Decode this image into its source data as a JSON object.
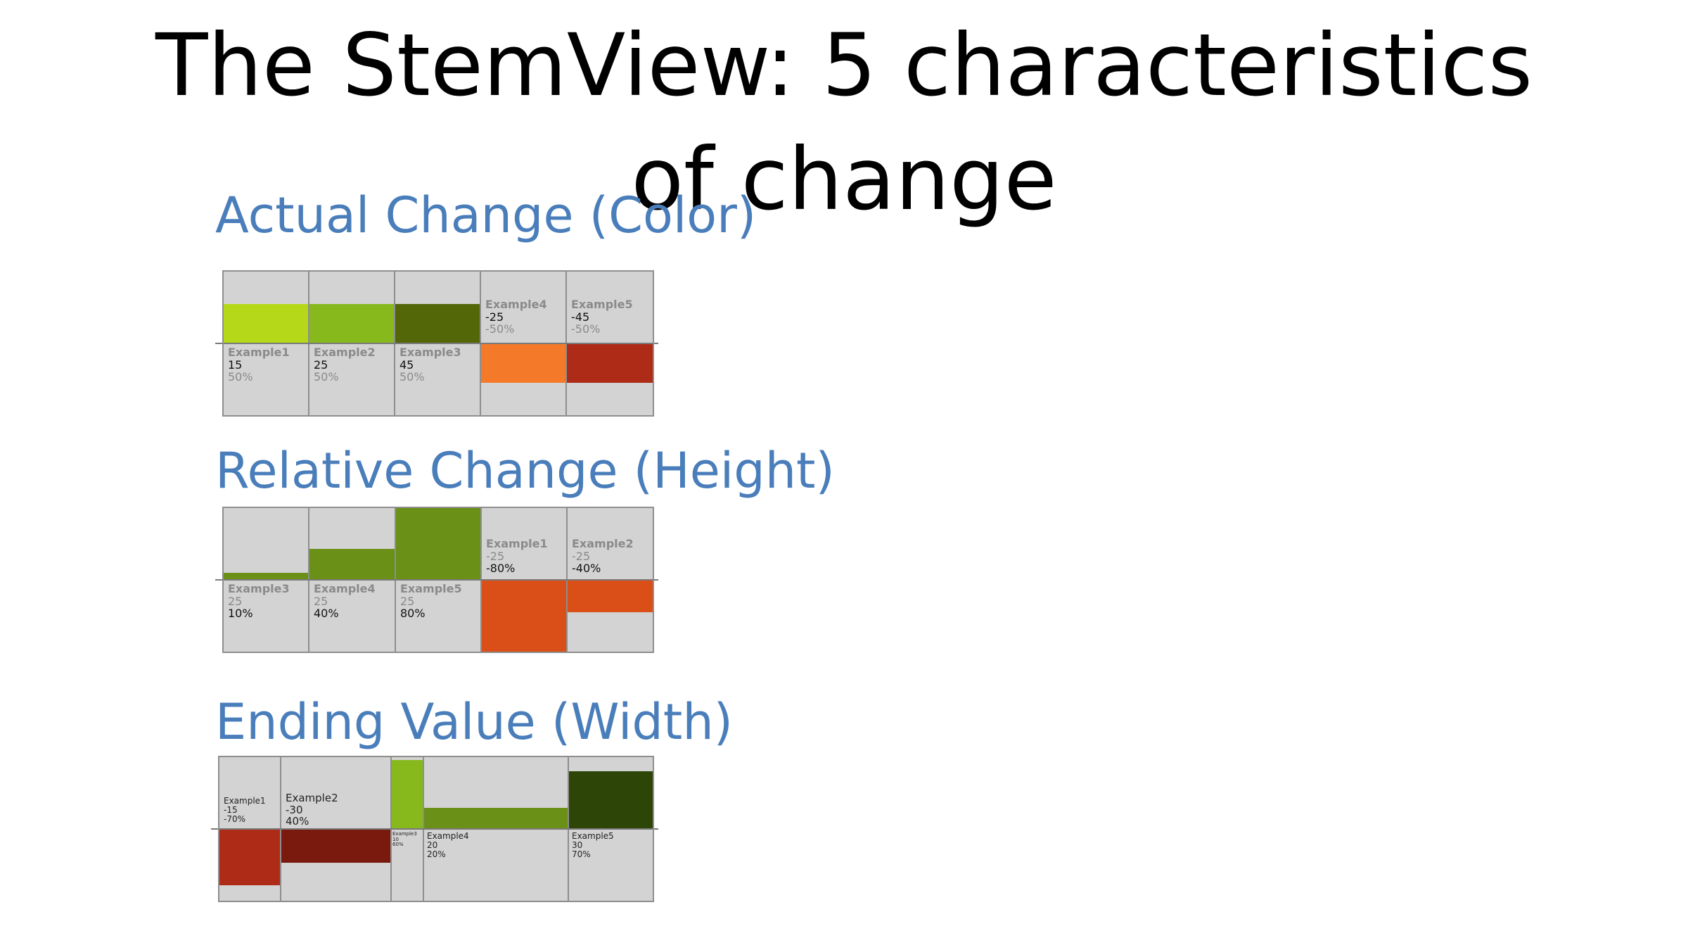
{
  "title": "The StemView: 5 characteristics of change",
  "sections": [
    {
      "heading": "Actual Change (Color)",
      "items": [
        {
          "name": "Example1",
          "value": "15",
          "percent": "50%",
          "color": "#b5d918"
        },
        {
          "name": "Example2",
          "value": "25",
          "percent": "50%",
          "color": "#87b91d"
        },
        {
          "name": "Example3",
          "value": "45",
          "percent": "50%",
          "color": "#536608"
        },
        {
          "name": "Example4",
          "value": "-25",
          "percent": "-50%",
          "color": "#f47a2a"
        },
        {
          "name": "Example5",
          "value": "-45",
          "percent": "-50%",
          "color": "#ad2b17"
        }
      ]
    },
    {
      "heading": "Relative Change (Height)",
      "items": [
        {
          "name": "Example3",
          "value": "25",
          "percent": "10%",
          "color": "#6a9018"
        },
        {
          "name": "Example4",
          "value": "25",
          "percent": "40%",
          "color": "#6a9018"
        },
        {
          "name": "Example5",
          "value": "25",
          "percent": "80%",
          "color": "#6a9018"
        },
        {
          "name": "Example1",
          "value": "-25",
          "percent": "-80%",
          "color": "#d94f17"
        },
        {
          "name": "Example2",
          "value": "-25",
          "percent": "-40%",
          "color": "#d94f17"
        }
      ]
    },
    {
      "heading": "Ending Value (Width)",
      "items": [
        {
          "name": "Example1",
          "value": "-15",
          "percent": "-70%",
          "color": "#ad2b17"
        },
        {
          "name": "Example2",
          "value": "-30",
          "percent": "40%",
          "color": "#7a1a0e"
        },
        {
          "name": "Example3",
          "value": "10",
          "percent": "60%",
          "color": "#87b91d"
        },
        {
          "name": "Example4",
          "value": "20",
          "percent": "20%",
          "color": "#6a9018"
        },
        {
          "name": "Example5",
          "value": "30",
          "percent": "70%",
          "color": "#2e4508"
        }
      ]
    }
  ],
  "colors": {
    "heading": "#4a7ebb",
    "panel_bg": "#d3d3d3"
  }
}
